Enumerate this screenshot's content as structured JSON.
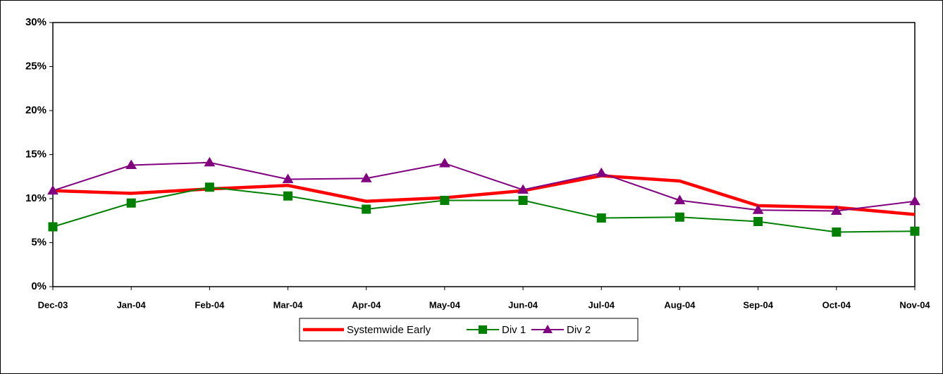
{
  "chart_data": {
    "type": "line",
    "categories": [
      "Dec-03",
      "Jan-04",
      "Feb-04",
      "Mar-04",
      "Apr-04",
      "May-04",
      "Jun-04",
      "Jul-04",
      "Aug-04",
      "Sep-04",
      "Oct-04",
      "Nov-04"
    ],
    "series": [
      {
        "name": "Systemwide Early",
        "color": "#ff0000",
        "marker": "none",
        "values": [
          10.9,
          10.6,
          11.1,
          11.5,
          9.7,
          10.1,
          10.9,
          12.6,
          12.0,
          9.2,
          9.0,
          8.2
        ]
      },
      {
        "name": "Div 1",
        "color": "#008000",
        "marker": "square",
        "values": [
          6.8,
          9.5,
          11.3,
          10.3,
          8.8,
          9.8,
          9.8,
          7.8,
          7.9,
          7.4,
          6.2,
          6.3
        ]
      },
      {
        "name": "Div 2",
        "color": "#800080",
        "marker": "triangle",
        "values": [
          10.9,
          13.8,
          14.1,
          12.2,
          12.3,
          14.0,
          11.0,
          12.9,
          9.8,
          8.7,
          8.6,
          9.7
        ]
      }
    ],
    "ylim": [
      0,
      30
    ],
    "yticks": [
      {
        "value": 0,
        "label": "0%"
      },
      {
        "value": 5,
        "label": "5%"
      },
      {
        "value": 10,
        "label": "10%"
      },
      {
        "value": 15,
        "label": "15%"
      },
      {
        "value": 20,
        "label": "20%"
      },
      {
        "value": 25,
        "label": "25%"
      },
      {
        "value": 30,
        "label": "30%"
      }
    ],
    "grid": false,
    "legend": "bottom"
  }
}
